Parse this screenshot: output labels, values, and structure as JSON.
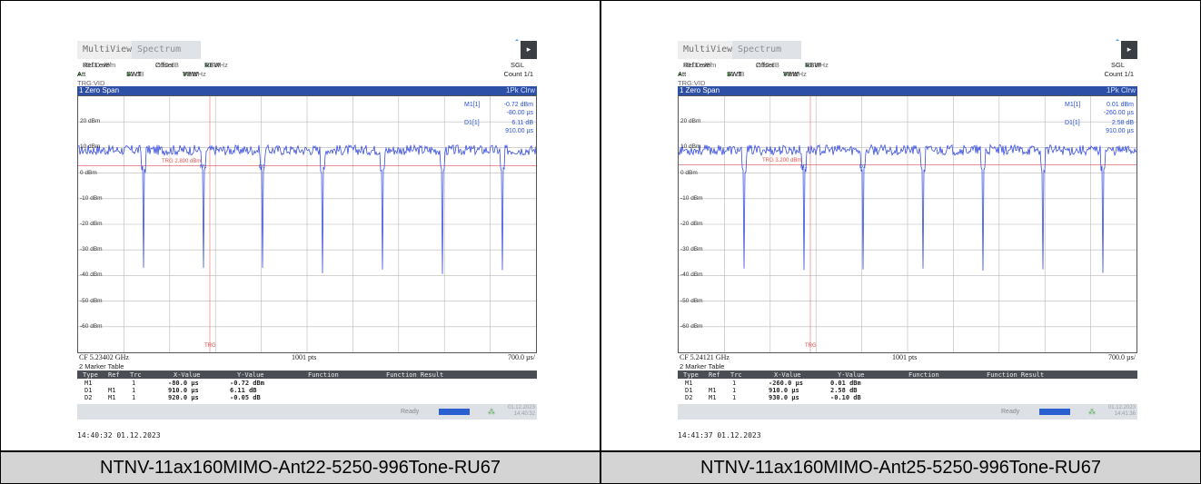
{
  "panels": [
    {
      "app_tabs": {
        "multiview": "MultiView",
        "star": "*",
        "spectrum": "Spectrum"
      },
      "settings": {
        "ref_level_label": "Ref Level",
        "ref_level_value": "30.00 dBm",
        "offset_label": "Offset",
        "offset_value": "2.00 dB",
        "rbw_label": "RBW",
        "rbw_value": "10 MHz",
        "att_label": "Att",
        "att_value": "30 dB",
        "swt_label": "SWT",
        "swt_value": "7 ms",
        "vbw_label": "VBW",
        "vbw_value": "10 MHz",
        "sgl": "SGL",
        "count": "Count 1/1",
        "trg": "TRG:VID"
      },
      "window_title": "1 Zero Span",
      "trace_mode": "1Pk Clrw",
      "markers_readout": [
        {
          "label": "M1[1]",
          "value1": "-0.72 dBm",
          "value2": "-80.00 µs"
        },
        {
          "label": "D1[1]",
          "value1": "6.11 dB",
          "value2": "910.00 µs"
        }
      ],
      "y_tick_labels": [
        "20 dBm",
        "10 dBm",
        "0 dBm",
        "-10 dBm",
        "-20 dBm",
        "-30 dBm",
        "-40 dBm",
        "-50 dBm",
        "-60 dBm"
      ],
      "trigger_line_label": "TRG 2.800 dBm",
      "trg_bottom_label": "TRG",
      "marker_flags": [
        "M1",
        "D1"
      ],
      "footer": {
        "cf": "CF 5.23402 GHz",
        "pts": "1001 pts",
        "span": "700.0 µs/"
      },
      "marker_table": {
        "title": "2 Marker Table",
        "headers": [
          "Type",
          "Ref",
          "Trc",
          "X-Value",
          "Y-Value",
          "Function",
          "Function Result"
        ],
        "rows": [
          {
            "type": "M1",
            "ref": "",
            "trc": "1",
            "x": "-80.0 µs",
            "y": "-0.72 dBm"
          },
          {
            "type": "D1",
            "ref": "M1",
            "trc": "1",
            "x": "910.0 µs",
            "y": "6.11 dB"
          },
          {
            "type": "D2",
            "ref": "M1",
            "trc": "1",
            "x": "920.0 µs",
            "y": "-0.05 dB"
          }
        ]
      },
      "status": {
        "ready": "Ready",
        "date": "01.12.2023",
        "time": "14:40:32"
      },
      "timestamp": "14:40:32  01.12.2023",
      "caption": "NTNV-11ax160MIMO-Ant22-5250-996Tone-RU67"
    },
    {
      "app_tabs": {
        "multiview": "MultiView",
        "star": "*",
        "spectrum": "Spectrum"
      },
      "settings": {
        "ref_level_label": "Ref Level",
        "ref_level_value": "30.00 dBm",
        "offset_label": "Offset",
        "offset_value": "2.00 dB",
        "rbw_label": "RBW",
        "rbw_value": "10 MHz",
        "att_label": "Att",
        "att_value": "30 dB",
        "swt_label": "SWT",
        "swt_value": "7 ms",
        "vbw_label": "VBW",
        "vbw_value": "10 MHz",
        "sgl": "SGL",
        "count": "Count 1/1",
        "trg": "TRG:VID"
      },
      "window_title": "1 Zero Span",
      "trace_mode": "1Pk Clrw",
      "markers_readout": [
        {
          "label": "M1[1]",
          "value1": "0.01 dBm",
          "value2": "-260.00 µs"
        },
        {
          "label": "D1[1]",
          "value1": "2.58 dB",
          "value2": "910.00 µs"
        }
      ],
      "y_tick_labels": [
        "20 dBm",
        "10 dBm",
        "0 dBm",
        "-10 dBm",
        "-20 dBm",
        "-30 dBm",
        "-40 dBm",
        "-50 dBm",
        "-60 dBm"
      ],
      "trigger_line_label": "TRG 3.200 dBm",
      "trg_bottom_label": "TRG",
      "marker_flags": [
        "M1",
        "D1"
      ],
      "footer": {
        "cf": "CF 5.24121 GHz",
        "pts": "1001 pts",
        "span": "700.0 µs/"
      },
      "marker_table": {
        "title": "2 Marker Table",
        "headers": [
          "Type",
          "Ref",
          "Trc",
          "X-Value",
          "Y-Value",
          "Function",
          "Function Result"
        ],
        "rows": [
          {
            "type": "M1",
            "ref": "",
            "trc": "1",
            "x": "-260.0 µs",
            "y": "0.01 dBm"
          },
          {
            "type": "D1",
            "ref": "M1",
            "trc": "1",
            "x": "910.0 µs",
            "y": "2.58 dB"
          },
          {
            "type": "D2",
            "ref": "M1",
            "trc": "1",
            "x": "930.0 µs",
            "y": "-0.10 dB"
          }
        ]
      },
      "status": {
        "ready": "Ready",
        "date": "01.12.2023",
        "time": "14:41:36"
      },
      "timestamp": "14:41:37  01.12.2023",
      "caption": "NTNV-11ax160MIMO-Ant25-5250-996Tone-RU67"
    }
  ],
  "colors": {
    "trace": "#3a4fe0",
    "title_bar": "#2e4fa6",
    "trigger_line": "#e05050",
    "grid": "#b8b8b8"
  }
}
